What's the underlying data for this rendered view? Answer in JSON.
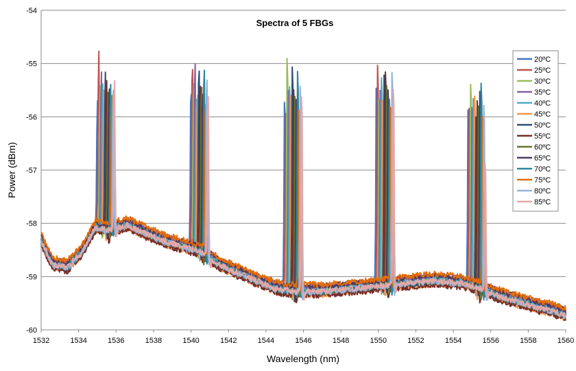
{
  "chart_data": {
    "type": "line",
    "title": "Spectra of 5 FBGs",
    "xlabel": "Wavelength (nm)",
    "ylabel": "Power (dBm)",
    "xlim": [
      1532,
      1560
    ],
    "ylim": [
      -60,
      -54
    ],
    "xticks": [
      "1532",
      "1534",
      "1536",
      "1538",
      "1540",
      "1542",
      "1544",
      "1546",
      "1548",
      "1550",
      "1552",
      "1554",
      "1556",
      "1558",
      "1560"
    ],
    "yticks": [
      "-60",
      "-59",
      "-58",
      "-57",
      "-56",
      "-55",
      "-54"
    ],
    "grid": "horizontal",
    "legend_position": "right",
    "peak_centers_at_20C": [
      1535.0,
      1540.0,
      1545.0,
      1549.9,
      1554.8
    ],
    "peak_shift_per_5C_nm": 0.07,
    "series": [
      {
        "name": "20ºC",
        "color": "#4472c4",
        "peaks_dBm": [
          -55.6,
          -55.2,
          -55.3,
          -55.0,
          -55.5
        ]
      },
      {
        "name": "25ºC",
        "color": "#c0504d",
        "peaks_dBm": [
          -54.65,
          -54.7,
          -55.6,
          -54.6,
          -55.4
        ]
      },
      {
        "name": "30ºC",
        "color": "#9bbb59",
        "peaks_dBm": [
          -55.3,
          -55.0,
          -54.4,
          -55.2,
          -54.9
        ]
      },
      {
        "name": "35ºC",
        "color": "#8064a2",
        "peaks_dBm": [
          -54.95,
          -54.65,
          -55.1,
          -55.1,
          -55.45
        ]
      },
      {
        "name": "40ºC",
        "color": "#4bacc6",
        "peaks_dBm": [
          -55.2,
          -55.3,
          -55.0,
          -54.8,
          -55.3
        ]
      },
      {
        "name": "45ºC",
        "color": "#f79646",
        "peaks_dBm": [
          -55.3,
          -55.2,
          -55.2,
          -55.3,
          -55.2
        ]
      },
      {
        "name": "50ºC",
        "color": "#2c4d75",
        "peaks_dBm": [
          -55.05,
          -54.7,
          -54.6,
          -54.7,
          -55.6
        ]
      },
      {
        "name": "55ºC",
        "color": "#772c2a",
        "peaks_dBm": [
          -55.2,
          -55.0,
          -55.0,
          -54.65,
          -55.3
        ]
      },
      {
        "name": "60ºC",
        "color": "#5f7530",
        "peaks_dBm": [
          -55.45,
          -55.1,
          -55.2,
          -55.0,
          -55.4
        ]
      },
      {
        "name": "65ºC",
        "color": "#4d3b62",
        "peaks_dBm": [
          -55.3,
          -55.2,
          -55.3,
          -55.1,
          -55.1
        ]
      },
      {
        "name": "70ºC",
        "color": "#2a87a2",
        "peaks_dBm": [
          -55.2,
          -54.75,
          -54.7,
          -55.3,
          -54.95
        ]
      },
      {
        "name": "75ºC",
        "color": "#e46c0a",
        "peaks_dBm": [
          -55.5,
          -55.4,
          -55.5,
          -55.4,
          -55.6
        ]
      },
      {
        "name": "80ºC",
        "color": "#95b3d7",
        "peaks_dBm": [
          -55.4,
          -54.9,
          -55.0,
          -54.65,
          -55.4
        ]
      },
      {
        "name": "85ºC",
        "color": "#e6a7a5",
        "peaks_dBm": [
          -55.15,
          -55.3,
          -55.2,
          -55.1,
          -56.6
        ]
      }
    ]
  }
}
